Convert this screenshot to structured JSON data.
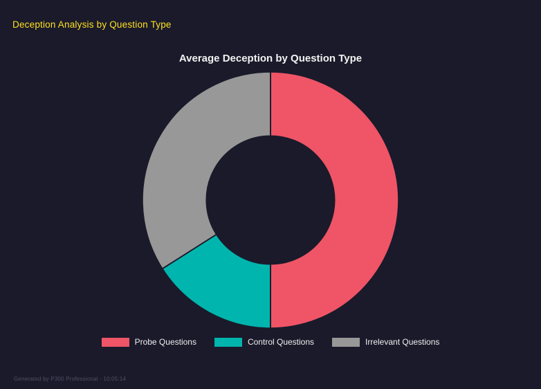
{
  "colors": {
    "background": "#1a1a2b",
    "header_accent": "#ffe020",
    "title_text": "#f2f2f2",
    "legend_text": "#eeeeee",
    "footer_text": "#4f4f63"
  },
  "header": {
    "title": "Deception Analysis by Question Type"
  },
  "footer": {
    "note": "Generated by P300 Professional - 10:05:14"
  },
  "chart_data": {
    "type": "pie",
    "subtype": "doughnut",
    "title": "Average Deception by Question Type",
    "labels": [
      "Probe Questions",
      "Control Questions",
      "Irrelevant Questions"
    ],
    "values_percent": [
      50,
      16,
      34
    ],
    "colors": [
      "#ef5566",
      "#00b5ad",
      "#989898"
    ],
    "hole_ratio": 0.5,
    "start_angle_deg": 0,
    "direction": "clockwise",
    "legend_position": "bottom",
    "grid": false
  }
}
